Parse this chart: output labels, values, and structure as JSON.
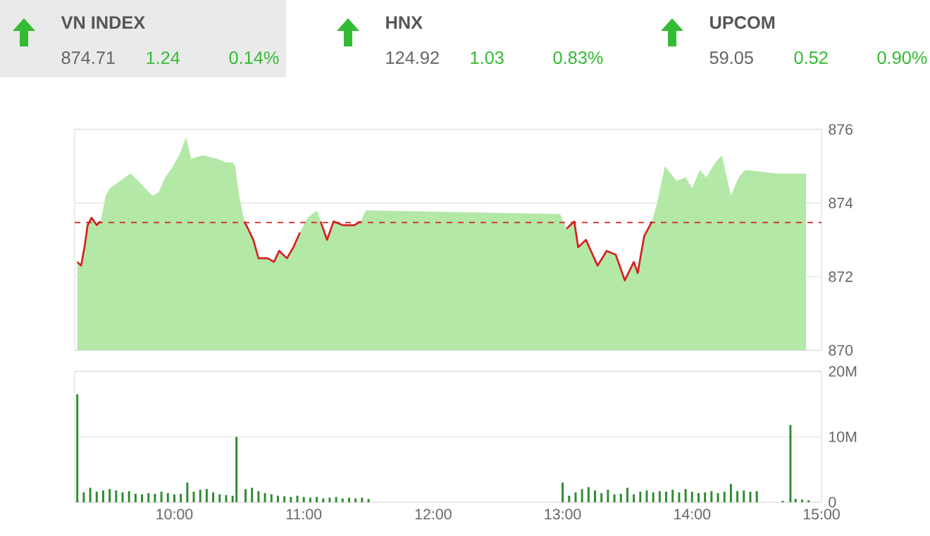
{
  "chart_data": [
    {
      "type": "other",
      "annotations": [
        "VN INDEX",
        "874.71",
        "1.24",
        "0.14%",
        "HNX",
        "124.92",
        "1.03",
        "0.83%",
        "UPCOM",
        "59.05",
        "0.52",
        "0.90%"
      ]
    },
    {
      "type": "area",
      "xlim": [
        9.23,
        15
      ],
      "ylim": [
        870,
        876
      ],
      "yticks": [
        870,
        872,
        874,
        876
      ],
      "grid": "y",
      "tick_labels": "y",
      "x": [
        9.25,
        9.28,
        9.31,
        9.33,
        9.36,
        9.4,
        9.43,
        9.47,
        9.5,
        9.58,
        9.66,
        9.72,
        9.83,
        9.88,
        9.93,
        9.99,
        10.05,
        10.09,
        10.13,
        10.22,
        10.33,
        10.4,
        10.45,
        10.47,
        10.5,
        10.54,
        10.57,
        10.61,
        10.65,
        10.72,
        10.77,
        10.81,
        10.87,
        10.92,
        10.97,
        11.03,
        11.1,
        11.13,
        11.18,
        11.23,
        11.3,
        11.39,
        11.44,
        11.48,
        12.98,
        13.03,
        13.09,
        13.12,
        13.18,
        13.27,
        13.34,
        13.41,
        13.48,
        13.55,
        13.58,
        13.63,
        13.69,
        13.73,
        13.79,
        13.88,
        13.95,
        14.0,
        14.06,
        14.11,
        14.18,
        14.23,
        14.3,
        14.36,
        14.41,
        14.66,
        14.7,
        14.88
      ],
      "series": [
        {
          "type": "area",
          "color": "#b3e8a6",
          "values": [
            872.4,
            872.3,
            872.9,
            873.4,
            873.6,
            873.4,
            873.5,
            874.2,
            874.4,
            874.6,
            874.8,
            874.6,
            874.2,
            874.3,
            874.7,
            875.0,
            875.4,
            875.8,
            875.2,
            875.3,
            875.2,
            875.1,
            875.1,
            875.0,
            874.2,
            873.5,
            873.3,
            873.0,
            872.5,
            872.5,
            872.4,
            872.7,
            872.5,
            872.8,
            873.2,
            873.6,
            873.8,
            873.5,
            873.0,
            873.5,
            873.4,
            873.4,
            873.5,
            873.8,
            873.7,
            873.3,
            873.5,
            872.8,
            873.0,
            872.3,
            872.7,
            872.6,
            871.9,
            872.4,
            872.1,
            873.1,
            873.5,
            874.0,
            875.0,
            874.6,
            874.7,
            874.4,
            874.9,
            874.7,
            875.1,
            875.3,
            874.2,
            874.7,
            874.9,
            874.8,
            874.8,
            874.8
          ]
        },
        {
          "type": "line",
          "color": "#d42020",
          "values": [
            872.4,
            872.3,
            872.9,
            873.4,
            873.6,
            873.4,
            873.5,
            null,
            null,
            null,
            null,
            null,
            null,
            null,
            null,
            null,
            null,
            null,
            null,
            null,
            null,
            null,
            null,
            null,
            null,
            873.5,
            873.3,
            873.0,
            872.5,
            872.5,
            872.4,
            872.7,
            872.5,
            872.8,
            873.2,
            null,
            null,
            873.5,
            873.0,
            873.5,
            873.4,
            873.4,
            873.5,
            null,
            null,
            873.3,
            873.5,
            872.8,
            873.0,
            872.3,
            872.7,
            872.6,
            871.9,
            872.4,
            872.1,
            873.1,
            873.5,
            null,
            null,
            null,
            null,
            null,
            null,
            null,
            null,
            null,
            null,
            null,
            null,
            null,
            null,
            null
          ]
        }
      ],
      "ref_lines": [
        {
          "axis": "y",
          "value": 873.47,
          "color": "#d42020",
          "line_style": "dashed"
        }
      ]
    },
    {
      "type": "bar",
      "color": "#2e8b2e",
      "xlim": [
        9.23,
        15
      ],
      "ylim": [
        0,
        20
      ],
      "grid": "y",
      "xticks": [
        {
          "value": 10,
          "label": "10:00"
        },
        {
          "value": 11,
          "label": "11:00"
        },
        {
          "value": 12,
          "label": "12:00"
        },
        {
          "value": 13,
          "label": "13:00"
        },
        {
          "value": 14,
          "label": "14:00"
        },
        {
          "value": 15,
          "label": "15:00"
        }
      ],
      "yticks": [
        0,
        {
          "value": 10,
          "label": "10M"
        },
        {
          "value": 20,
          "label": "20M"
        }
      ],
      "x": [
        9.25,
        9.3,
        9.35,
        9.4,
        9.45,
        9.5,
        9.55,
        9.6,
        9.65,
        9.7,
        9.75,
        9.8,
        9.85,
        9.9,
        9.95,
        10.0,
        10.05,
        10.1,
        10.15,
        10.2,
        10.25,
        10.3,
        10.35,
        10.4,
        10.45,
        10.48,
        10.55,
        10.6,
        10.65,
        10.7,
        10.75,
        10.8,
        10.85,
        10.9,
        10.95,
        11.0,
        11.05,
        11.1,
        11.15,
        11.2,
        11.25,
        11.3,
        11.35,
        11.4,
        11.45,
        11.5,
        13.0,
        13.05,
        13.1,
        13.15,
        13.2,
        13.25,
        13.3,
        13.35,
        13.4,
        13.45,
        13.5,
        13.55,
        13.6,
        13.65,
        13.7,
        13.75,
        13.8,
        13.85,
        13.9,
        13.95,
        14.0,
        14.05,
        14.1,
        14.15,
        14.2,
        14.25,
        14.3,
        14.35,
        14.4,
        14.45,
        14.5,
        14.7,
        14.76,
        14.8,
        14.85,
        14.9
      ],
      "values": [
        16.5,
        1.5,
        2.2,
        1.6,
        1.8,
        2.0,
        1.8,
        1.5,
        1.7,
        1.3,
        1.2,
        1.4,
        1.3,
        1.6,
        1.4,
        1.2,
        1.3,
        3.0,
        1.6,
        1.9,
        2.0,
        1.5,
        1.2,
        1.1,
        1.0,
        10.0,
        2.0,
        2.2,
        1.7,
        1.4,
        1.2,
        1.0,
        0.9,
        0.8,
        1.0,
        0.8,
        0.7,
        0.8,
        0.6,
        0.7,
        0.8,
        0.6,
        0.7,
        0.6,
        0.7,
        0.5,
        3.0,
        1.0,
        1.5,
        2.0,
        2.3,
        1.8,
        1.4,
        1.9,
        1.2,
        1.3,
        2.2,
        1.2,
        1.6,
        1.8,
        1.5,
        1.7,
        1.6,
        1.9,
        1.5,
        2.0,
        1.6,
        1.4,
        1.5,
        1.7,
        1.4,
        1.6,
        2.8,
        1.7,
        1.8,
        1.6,
        1.7,
        0.2,
        11.8,
        0.5,
        0.4,
        0.3
      ]
    }
  ]
}
